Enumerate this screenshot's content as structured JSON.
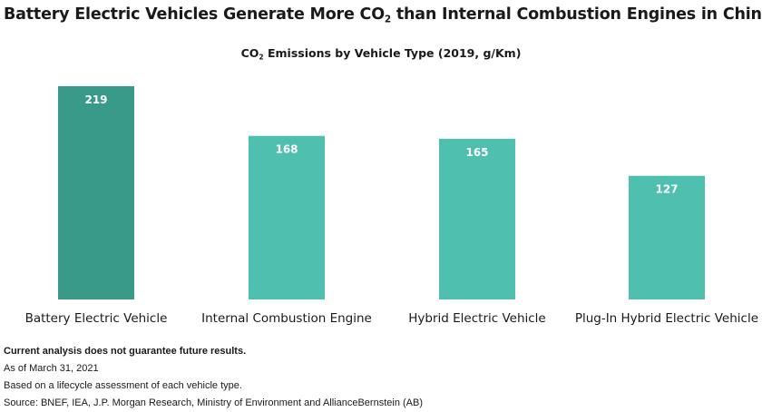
{
  "title": {
    "before": "Battery Electric Vehicles Generate More CO",
    "sub": "2",
    "after": " than Internal Combustion Engines in China"
  },
  "subtitle": {
    "before": "CO",
    "sub": "2",
    "after": " Emissions by Vehicle Type (2019, g/Km)"
  },
  "chart_data": {
    "type": "bar",
    "title": "CO2 Emissions by Vehicle Type (2019, g/Km)",
    "categories": [
      "Battery Electric Vehicle",
      "Internal Combustion Engine",
      "Hybrid Electric Vehicle",
      "Plug-In Hybrid Electric Vehicle"
    ],
    "values": [
      219,
      168,
      165,
      127
    ],
    "ylim": [
      0,
      219
    ],
    "grid": false,
    "legend": "none",
    "data_labels": true,
    "colors": {
      "highlight": "#3a9a8a",
      "default": "#4fc0b0"
    },
    "highlight_index": 0
  },
  "footnotes": {
    "disclaimer": "Current analysis does not guarantee future results.",
    "date": "As of March 31, 2021",
    "basis": "Based on a lifecycle assessment of each vehicle type.",
    "source": "Source: BNEF, IEA, J.P. Morgan Research, Ministry of Environment and AllianceBernstein (AB)"
  }
}
